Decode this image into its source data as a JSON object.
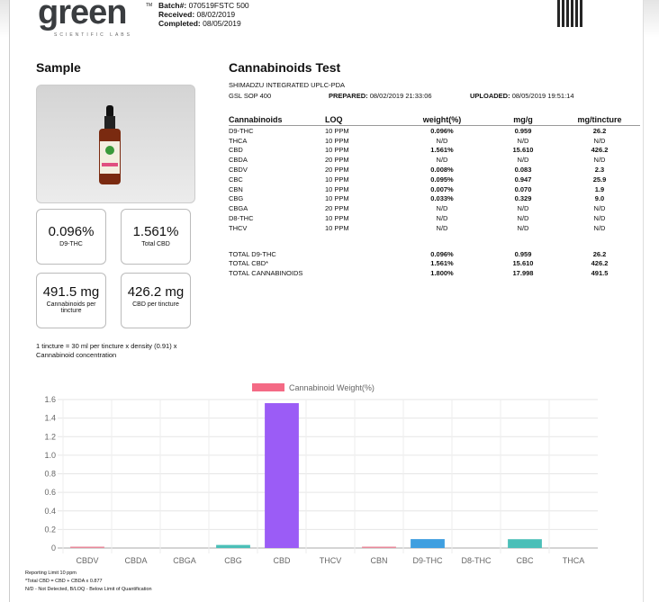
{
  "header": {
    "logo": "green",
    "logo_sub": "SCIENTIFIC LABS",
    "tm": "TM",
    "batch_label": "Batch#:",
    "batch": "070519FSTC 500",
    "received_label": "Received:",
    "received": "08/02/2019",
    "completed_label": "Completed:",
    "completed": "08/05/2019"
  },
  "sample": {
    "title": "Sample",
    "cards": [
      {
        "value": "0.096%",
        "label": "D9-THC"
      },
      {
        "value": "1.561%",
        "label": "Total CBD"
      },
      {
        "value": "491.5 mg",
        "label": "Cannabinoids per tincture"
      },
      {
        "value": "426.2 mg",
        "label": "CBD per tincture"
      }
    ],
    "note": "1 tincture = 30 ml per tincture x density (0.91) x Cannabinoid concentration"
  },
  "test": {
    "title": "Cannabinoids Test",
    "method": "SHIMADZU INTEGRATED UPLC-PDA",
    "sop": "GSL SOP 400",
    "prepared_label": "PREPARED:",
    "prepared": "08/02/2019 21:33:06",
    "uploaded_label": "UPLOADED:",
    "uploaded": "08/05/2019 19:51:14",
    "columns": [
      "Cannabinoids",
      "LOQ",
      "weight(%)",
      "mg/g",
      "mg/tincture"
    ],
    "rows": [
      [
        "D9-THC",
        "10 PPM",
        "0.096%",
        "0.959",
        "26.2"
      ],
      [
        "THCA",
        "10 PPM",
        "N/D",
        "N/D",
        "N/D"
      ],
      [
        "CBD",
        "10 PPM",
        "1.561%",
        "15.610",
        "426.2"
      ],
      [
        "CBDA",
        "20 PPM",
        "N/D",
        "N/D",
        "N/D"
      ],
      [
        "CBDV",
        "20 PPM",
        "0.008%",
        "0.083",
        "2.3"
      ],
      [
        "CBC",
        "10 PPM",
        "0.095%",
        "0.947",
        "25.9"
      ],
      [
        "CBN",
        "10 PPM",
        "0.007%",
        "0.070",
        "1.9"
      ],
      [
        "CBG",
        "10 PPM",
        "0.033%",
        "0.329",
        "9.0"
      ],
      [
        "CBGA",
        "20 PPM",
        "N/D",
        "N/D",
        "N/D"
      ],
      [
        "D8-THC",
        "10 PPM",
        "N/D",
        "N/D",
        "N/D"
      ],
      [
        "THCV",
        "10 PPM",
        "N/D",
        "N/D",
        "N/D"
      ]
    ],
    "totals": [
      [
        "TOTAL D9-THC",
        "0.096%",
        "0.959",
        "26.2"
      ],
      [
        "TOTAL CBD*",
        "1.561%",
        "15.610",
        "426.2"
      ],
      [
        "TOTAL CANNABINOIDS",
        "1.800%",
        "17.998",
        "491.5"
      ]
    ]
  },
  "chart_data": {
    "type": "bar",
    "legend": "Cannabinoid Weight(%)",
    "legend_color": "#f46a85",
    "legend_position": "top",
    "categories": [
      "CBDV",
      "CBDA",
      "CBGA",
      "CBG",
      "CBD",
      "THCV",
      "CBN",
      "D9-THC",
      "D8-THC",
      "CBC",
      "THCA"
    ],
    "values": [
      0.008,
      0,
      0,
      0.033,
      1.561,
      0,
      0.007,
      0.096,
      0,
      0.095,
      0
    ],
    "colors": [
      "#e8889a",
      "#ccc",
      "#ccc",
      "#4bbfb8",
      "#9b5cf6",
      "#ccc",
      "#e8889a",
      "#3f9fe0",
      "#ccc",
      "#4bbfb8",
      "#ccc"
    ],
    "ylim": [
      0,
      1.6
    ],
    "yticks": [
      "0",
      "0.2",
      "0.4",
      "0.6",
      "0.8",
      "1.0",
      "1.2",
      "1.4",
      "1.6"
    ],
    "grid": true
  },
  "footer": [
    "Reporting Limit 10 ppm",
    "*Total CBD = CBD + CBDA x 0.877",
    "N/D - Not Detected, B/LOQ - Below Limit of Quantification"
  ]
}
